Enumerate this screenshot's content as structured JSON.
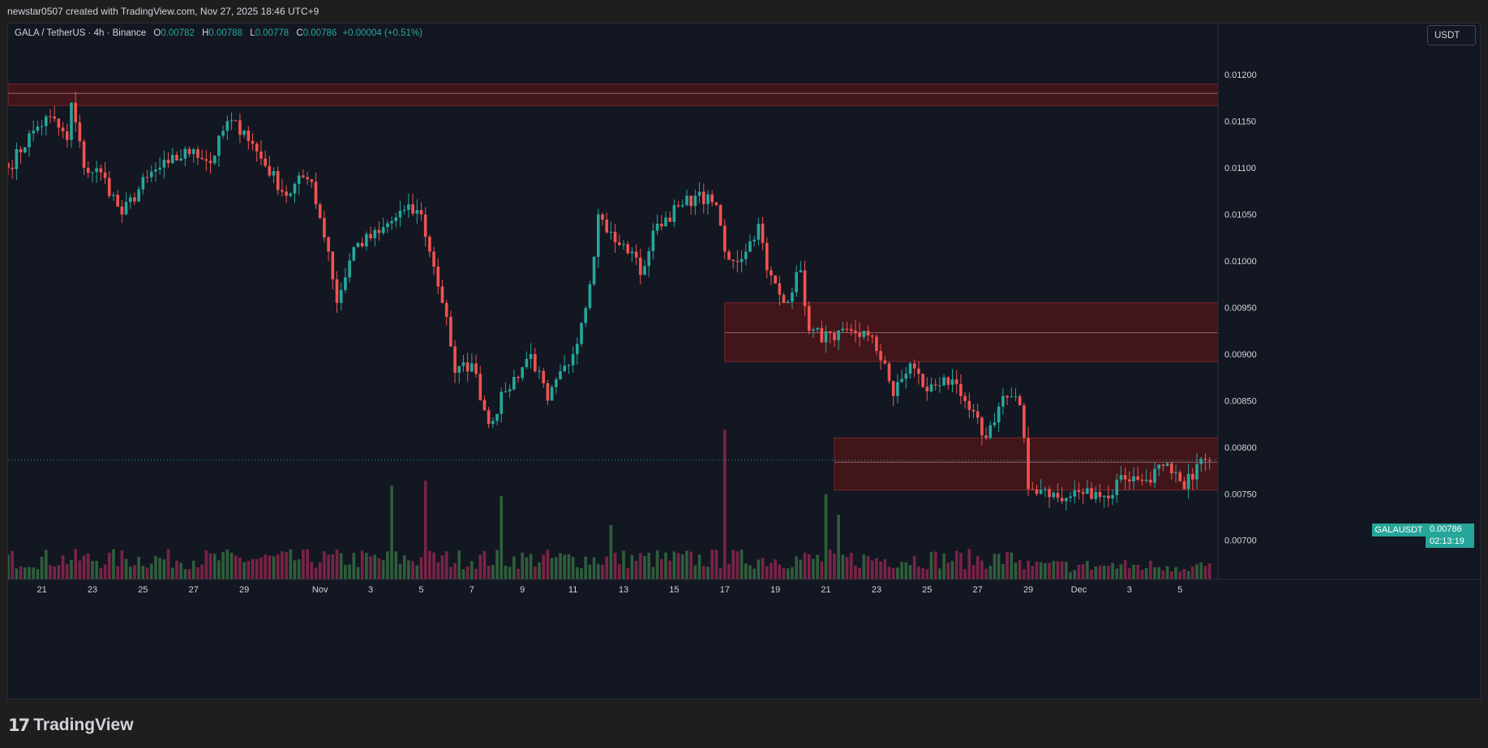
{
  "header": {
    "attribution": "newstar0507 created with TradingView.com, Nov 27, 2025 18:46 UTC+9"
  },
  "legend": {
    "symbol": "GALA / TetherUS · 4h · Binance",
    "open_label": "O",
    "open": "0.00782",
    "high_label": "H",
    "high": "0.00788",
    "low_label": "L",
    "low": "0.00778",
    "close_label": "C",
    "close": "0.00786",
    "change": "+0.00004 (+0.51%)"
  },
  "currency_button": "USDT",
  "last_price_tag": {
    "ticker": "GALAUSDT",
    "price": "0.00786",
    "countdown": "02:13:19"
  },
  "footer": {
    "logo_mark": "17",
    "brand": "TradingView"
  },
  "colors": {
    "up": "#26a69a",
    "down": "#ef5350",
    "volume_up": "#2f5e3b",
    "volume_down": "#7a2346",
    "zone_fill": "#4a1519",
    "zone_border": "#8a2a2e",
    "background": "#131722",
    "axis_text": "#d1d4dc"
  },
  "chart_data": {
    "type": "candlestick",
    "symbol": "GALAUSDT",
    "interval": "4h",
    "exchange": "Binance",
    "y_range": [
      0.00658,
      0.01255
    ],
    "y_ticks": [
      "0.01200",
      "0.01150",
      "0.01100",
      "0.01050",
      "0.01000",
      "0.00950",
      "0.00900",
      "0.00850",
      "0.00800",
      "0.00750",
      "0.00700"
    ],
    "x_range": [
      "2025-10-19T16:00",
      "2025-12-06T12:00"
    ],
    "x_ticks": [
      {
        "date": "2025-10-21",
        "label": "21"
      },
      {
        "date": "2025-10-23",
        "label": "23"
      },
      {
        "date": "2025-10-25",
        "label": "25"
      },
      {
        "date": "2025-10-27",
        "label": "27"
      },
      {
        "date": "2025-10-29",
        "label": "29"
      },
      {
        "date": "2025-11-01",
        "label": "Nov"
      },
      {
        "date": "2025-11-03",
        "label": "3"
      },
      {
        "date": "2025-11-05",
        "label": "5"
      },
      {
        "date": "2025-11-07",
        "label": "7"
      },
      {
        "date": "2025-11-09",
        "label": "9"
      },
      {
        "date": "2025-11-11",
        "label": "11"
      },
      {
        "date": "2025-11-13",
        "label": "13"
      },
      {
        "date": "2025-11-15",
        "label": "15"
      },
      {
        "date": "2025-11-17",
        "label": "17"
      },
      {
        "date": "2025-11-19",
        "label": "19"
      },
      {
        "date": "2025-11-21",
        "label": "21"
      },
      {
        "date": "2025-11-23",
        "label": "23"
      },
      {
        "date": "2025-11-25",
        "label": "25"
      },
      {
        "date": "2025-11-27",
        "label": "27"
      },
      {
        "date": "2025-11-29",
        "label": "29"
      },
      {
        "date": "2025-12-01",
        "label": "Dec"
      },
      {
        "date": "2025-12-03",
        "label": "3"
      },
      {
        "date": "2025-12-05",
        "label": "5"
      }
    ],
    "first_candle": "2025-10-19T16:00",
    "interval_hours": 4,
    "close_path": [
      [
        0,
        0.011
      ],
      [
        6,
        0.0114
      ],
      [
        10,
        0.01155
      ],
      [
        14,
        0.0113
      ],
      [
        15,
        0.0117
      ],
      [
        18,
        0.011
      ],
      [
        22,
        0.01095
      ],
      [
        27,
        0.0105
      ],
      [
        33,
        0.0109
      ],
      [
        38,
        0.01105
      ],
      [
        44,
        0.0112
      ],
      [
        48,
        0.01105
      ],
      [
        52,
        0.0115
      ],
      [
        56,
        0.0114
      ],
      [
        60,
        0.0111
      ],
      [
        66,
        0.0107
      ],
      [
        70,
        0.0109
      ],
      [
        72,
        0.01085
      ],
      [
        76,
        0.0101
      ],
      [
        78,
        0.00955
      ],
      [
        82,
        0.01015
      ],
      [
        88,
        0.0103
      ],
      [
        94,
        0.01055
      ],
      [
        98,
        0.0105
      ],
      [
        100,
        0.0101
      ],
      [
        104,
        0.0094
      ],
      [
        106,
        0.0088
      ],
      [
        110,
        0.0089
      ],
      [
        114,
        0.00825
      ],
      [
        118,
        0.0086
      ],
      [
        124,
        0.009
      ],
      [
        128,
        0.0085
      ],
      [
        134,
        0.009
      ],
      [
        138,
        0.00975
      ],
      [
        140,
        0.0105
      ],
      [
        144,
        0.0102
      ],
      [
        148,
        0.0101
      ],
      [
        150,
        0.00985
      ],
      [
        154,
        0.0104
      ],
      [
        160,
        0.0106
      ],
      [
        163,
        0.0107
      ],
      [
        168,
        0.0106
      ],
      [
        170,
        0.0101
      ],
      [
        172,
        0.01
      ],
      [
        175,
        0.0101
      ],
      [
        178,
        0.0104
      ],
      [
        180,
        0.0099
      ],
      [
        184,
        0.00955
      ],
      [
        188,
        0.0099
      ],
      [
        190,
        0.00925
      ],
      [
        196,
        0.00915
      ],
      [
        200,
        0.00925
      ],
      [
        204,
        0.0092
      ],
      [
        208,
        0.0089
      ],
      [
        210,
        0.00855
      ],
      [
        214,
        0.0089
      ],
      [
        218,
        0.0086
      ],
      [
        222,
        0.00875
      ],
      [
        226,
        0.00855
      ],
      [
        228,
        0.0084
      ],
      [
        232,
        0.0081
      ],
      [
        236,
        0.00855
      ],
      [
        240,
        0.00845
      ],
      [
        241,
        0.0081
      ],
      [
        242,
        0.00755
      ],
      [
        246,
        0.00755
      ],
      [
        250,
        0.00742
      ],
      [
        254,
        0.00752
      ],
      [
        258,
        0.00752
      ],
      [
        261,
        0.00745
      ],
      [
        264,
        0.0077
      ],
      [
        268,
        0.00765
      ],
      [
        270,
        0.00765
      ],
      [
        274,
        0.0078
      ],
      [
        276,
        0.00772
      ],
      [
        279,
        0.00755
      ],
      [
        282,
        0.00782
      ],
      [
        285,
        0.00786
      ]
    ],
    "volume_spikes": [
      {
        "date": "2025-11-03T20:00",
        "relative": 0.55
      },
      {
        "date": "2025-11-05T04:00",
        "relative": 0.58
      },
      {
        "date": "2025-11-08T04:00",
        "relative": 0.49
      },
      {
        "date": "2025-11-12T12:00",
        "relative": 0.32
      },
      {
        "date": "2025-11-17T00:00",
        "relative": 0.88
      },
      {
        "date": "2025-11-21T00:00",
        "relative": 0.5
      },
      {
        "date": "2025-11-21T12:00",
        "relative": 0.38
      }
    ],
    "zones": [
      {
        "from": "2025-10-19T16:00",
        "to": "2025-12-06T12:00",
        "low": 0.01167,
        "high": 0.0119,
        "mid": 0.0118
      },
      {
        "from": "2025-11-17T00:00",
        "to": "2025-12-06T12:00",
        "low": 0.00892,
        "high": 0.00955,
        "mid": 0.00923
      },
      {
        "from": "2025-11-21T08:00",
        "to": "2025-12-06T12:00",
        "low": 0.00754,
        "high": 0.0081,
        "mid": 0.00784
      }
    ],
    "last_price": 0.00786
  }
}
